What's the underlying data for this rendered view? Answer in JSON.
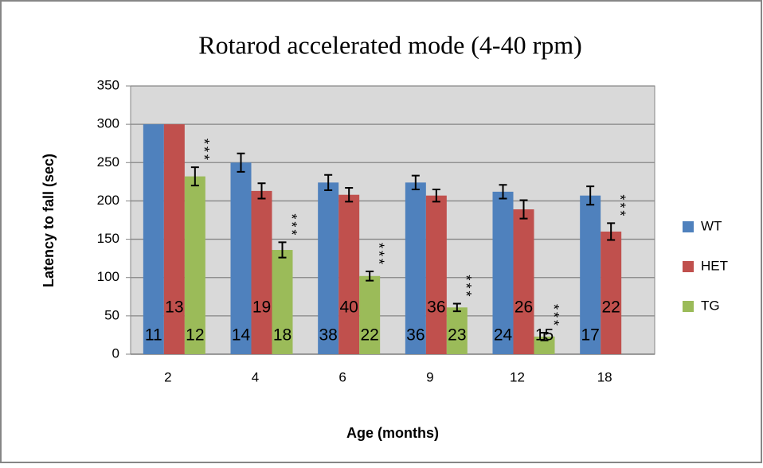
{
  "chart_data": {
    "type": "bar",
    "title": "Rotarod accelerated mode  (4-40 rpm)",
    "x_label": "Age (months)",
    "y_label": "Latency to fall (sec)",
    "categories": [
      "2",
      "4",
      "6",
      "9",
      "12",
      "18"
    ],
    "series": [
      {
        "name": "WT",
        "color": "#4f81bd",
        "values": [
          300,
          250,
          224,
          224,
          212,
          207
        ],
        "errors": [
          0,
          12,
          10,
          9,
          9,
          12
        ],
        "n": [
          "11",
          "14",
          "38",
          "36",
          "24",
          "17"
        ],
        "significance": [
          null,
          null,
          null,
          null,
          null,
          null
        ]
      },
      {
        "name": "HET",
        "color": "#c0504d",
        "values": [
          300,
          213,
          208,
          207,
          189,
          160
        ],
        "errors": [
          0,
          10,
          9,
          8,
          12,
          11
        ],
        "n": [
          "13",
          "19",
          "40",
          "36",
          "26",
          "22"
        ],
        "significance": [
          null,
          null,
          null,
          null,
          null,
          "***"
        ]
      },
      {
        "name": "TG",
        "color": "#9bbb59",
        "values": [
          232,
          136,
          102,
          61,
          23,
          null
        ],
        "errors": [
          12,
          10,
          6,
          5,
          5,
          null
        ],
        "n": [
          "12",
          "18",
          "22",
          "23",
          "15",
          null
        ],
        "significance": [
          "***",
          "***",
          "***",
          "***",
          "***",
          null
        ]
      }
    ],
    "ylim": [
      0,
      350
    ],
    "yticks": [
      0,
      50,
      100,
      150,
      200,
      250,
      300,
      350
    ],
    "grid": true,
    "legend": "right"
  }
}
